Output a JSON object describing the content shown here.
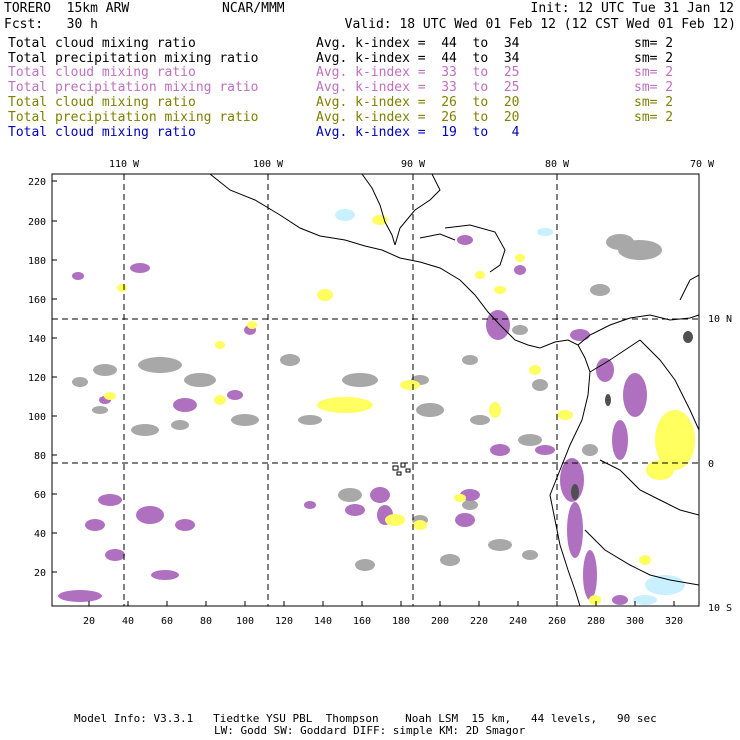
{
  "header": {
    "model": "TORERO  15km ARW",
    "org": "NCAR/MMM",
    "init": "Init: 12 UTC Tue 31 Jan 12",
    "fcst": "Fcst:   30 h",
    "valid": "Valid: 18 UTC Wed 01 Feb 12 (12 CST Wed 01 Feb 12)"
  },
  "legend_rows": [
    {
      "field": "Total cloud mixing ratio",
      "kindex": "Avg. k-index =  44  to  34",
      "sm": "sm= 2",
      "color": "#000000"
    },
    {
      "field": "Total precipitation mixing ratio",
      "kindex": "Avg. k-index =  44  to  34",
      "sm": "sm= 2",
      "color": "#000000"
    },
    {
      "field": "Total cloud mixing ratio",
      "kindex": "Avg. k-index =  33  to  25",
      "sm": "sm= 2",
      "color": "#c070c0"
    },
    {
      "field": "Total precipitation mixing ratio",
      "kindex": "Avg. k-index =  33  to  25",
      "sm": "sm= 2",
      "color": "#c070c0"
    },
    {
      "field": "Total cloud mixing ratio",
      "kindex": "Avg. k-index =  26  to  20",
      "sm": "sm= 2",
      "color": "#808000"
    },
    {
      "field": "Total precipitation mixing ratio",
      "kindex": "Avg. k-index =  26  to  20",
      "sm": "sm= 2",
      "color": "#808000"
    },
    {
      "field": "Total cloud mixing ratio",
      "kindex": "Avg. k-index =  19  to   4",
      "sm": "",
      "color": "#0000c0"
    }
  ],
  "map": {
    "lon_labels_top": [
      "110 W",
      "100 W",
      "90 W",
      "80 W",
      "70 W"
    ],
    "lat_labels_right": [
      "10 N",
      "0",
      "10 S"
    ],
    "y_ticks": [
      "220",
      "200",
      "180",
      "160",
      "140",
      "120",
      "100",
      "80",
      "60",
      "40",
      "20"
    ],
    "x_ticks": [
      "20",
      "40",
      "60",
      "80",
      "100",
      "120",
      "140",
      "160",
      "180",
      "200",
      "220",
      "240",
      "260",
      "280",
      "300",
      "320"
    ],
    "colors": {
      "grey": "#a8a8a8",
      "purple": "#b070c0",
      "yellow": "#ffff60",
      "cyan": "#c8f0ff",
      "dark": "#505050"
    }
  },
  "footer": {
    "line1": "Model Info: V3.3.1   Tiedtke YSU PBL  Thompson    Noah LSM  15 km,   44 levels,   90 sec",
    "line2": "LW: Godd SW: Goddard DIFF: simple KM: 2D Smagor"
  }
}
